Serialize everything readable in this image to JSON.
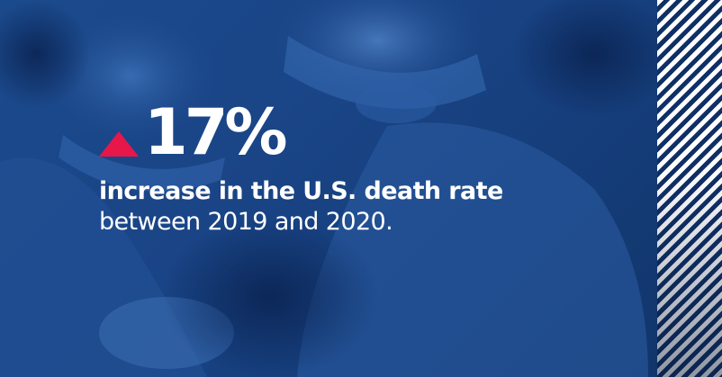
{
  "stat": {
    "value": "17%",
    "direction_icon": "triangle-up-icon",
    "accent_color": "#e8174a"
  },
  "text": {
    "headline": "increase in the U.S. death rate",
    "subline": "between 2019 and 2020."
  },
  "palette": {
    "background_blue": "#1a4587",
    "text_white": "#ffffff",
    "stripe_dark": "#102f66"
  }
}
